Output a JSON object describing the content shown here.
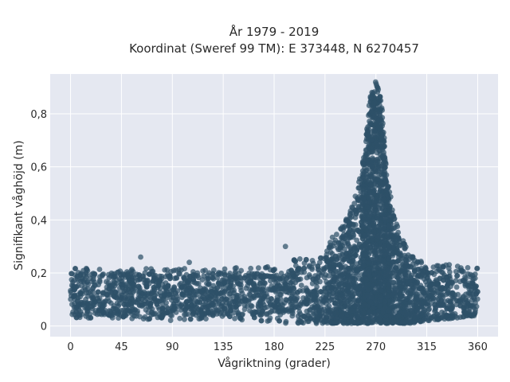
{
  "chart_data": {
    "type": "scatter",
    "title": "År 1979 - 2019",
    "subtitle": "Koordinat (Sweref 99 TM): E 373448, N 6270457",
    "xlabel": "Vågriktning (grader)",
    "ylabel": "Signifikant våghöjd (m)",
    "xlim": [
      -18,
      378
    ],
    "ylim": [
      -0.04,
      0.95
    ],
    "xticks": [
      0,
      45,
      90,
      135,
      180,
      225,
      270,
      315,
      360
    ],
    "yticks": [
      0,
      0.2,
      0.4,
      0.6,
      0.8
    ],
    "ytick_labels": [
      "0",
      "0,2",
      "0,4",
      "0,6",
      "0,8"
    ],
    "grid": true,
    "legend": "none",
    "marker_color": "#2e5068",
    "plot_background": "#e5e8f1",
    "envelope": {
      "direction": [
        0,
        45,
        90,
        135,
        180,
        225,
        240,
        250,
        260,
        265,
        270,
        275,
        280,
        290,
        300,
        315,
        340,
        360
      ],
      "hs_min": [
        0.03,
        0.03,
        0.02,
        0.03,
        0.01,
        0.01,
        0.01,
        0.01,
        0.01,
        0.01,
        0.01,
        0.01,
        0.01,
        0.01,
        0.01,
        0.02,
        0.03,
        0.04
      ],
      "hs_max": [
        0.22,
        0.21,
        0.21,
        0.22,
        0.23,
        0.3,
        0.38,
        0.46,
        0.65,
        0.88,
        0.93,
        0.85,
        0.55,
        0.36,
        0.27,
        0.24,
        0.23,
        0.22
      ]
    },
    "outliers": [
      {
        "x": 62,
        "y": 0.26
      },
      {
        "x": 105,
        "y": 0.24
      },
      {
        "x": 190,
        "y": 0.3
      }
    ]
  }
}
